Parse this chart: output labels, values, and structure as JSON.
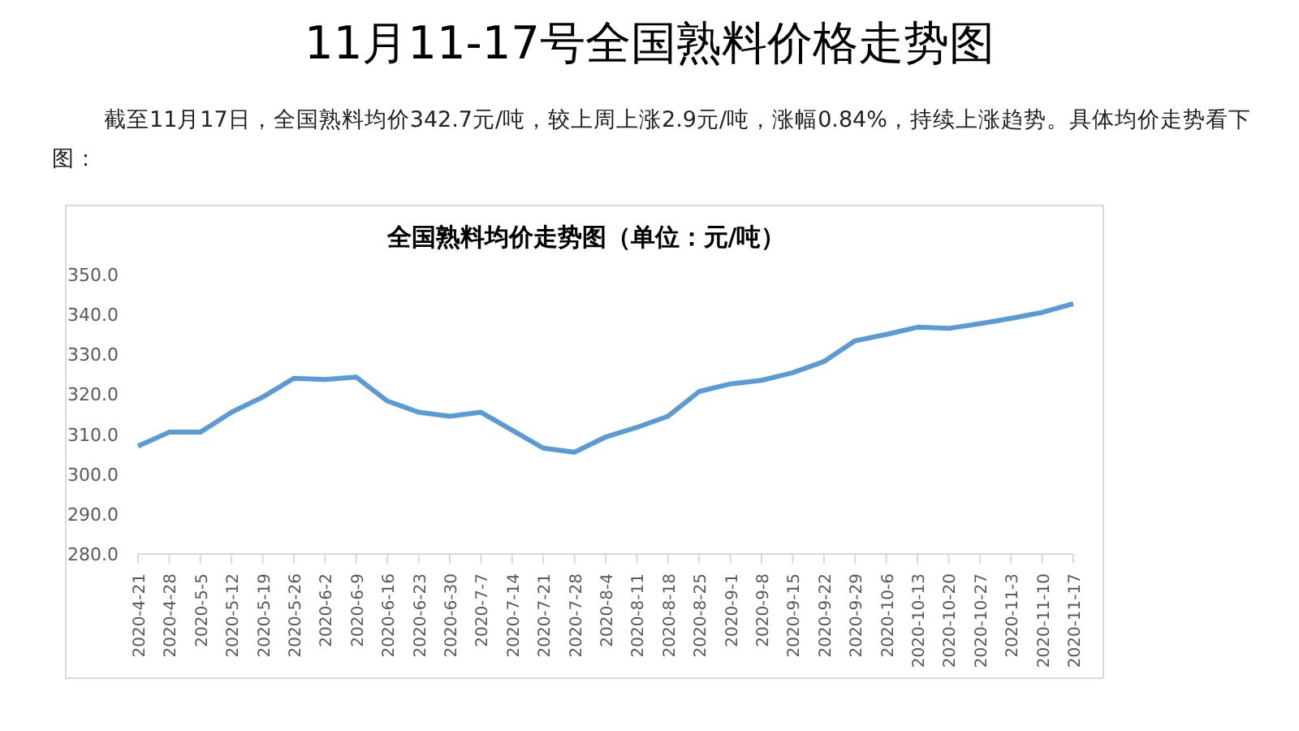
{
  "chart_data": {
    "type": "line",
    "title": "11月11-17号全国熟料价格走势图",
    "subtitle": "截至11月17日，全国熟料均价342.7元/吨，较上周上涨2.9元/吨，涨幅0.84%，持续上涨趋势。具体均价走势看下图：",
    "annotations": [
      "全国熟料均价走势图（单位：元/吨）"
    ],
    "categories": [
      "2020-4-21",
      "2020-4-28",
      "2020-5-5",
      "2020-5-12",
      "2020-5-19",
      "2020-5-26",
      "2020-6-2",
      "2020-6-9",
      "2020-6-16",
      "2020-6-23",
      "2020-6-30",
      "2020-7-7",
      "2020-7-14",
      "2020-7-21",
      "2020-7-28",
      "2020-8-4",
      "2020-8-11",
      "2020-8-18",
      "2020-8-25",
      "2020-9-1",
      "2020-9-8",
      "2020-9-15",
      "2020-9-22",
      "2020-9-29",
      "2020-10-6",
      "2020-10-13",
      "2020-10-20",
      "2020-10-27",
      "2020-11-3",
      "2020-11-10",
      "2020-11-17"
    ],
    "series": [
      {
        "color": "#5b9bd5",
        "values": [
          307,
          310.5,
          310.5,
          315.5,
          319.3,
          324,
          323.7,
          324.3,
          318.3,
          315.5,
          314.5,
          315.5,
          311,
          306.5,
          305.5,
          309.3,
          311.7,
          314.5,
          320.7,
          322.6,
          323.5,
          325.4,
          328.2,
          333.4,
          335,
          336.8,
          336.5,
          337.7,
          339,
          340.5,
          342.7
        ]
      }
    ],
    "ylim": [
      280,
      350
    ],
    "yticks": [
      {
        "value": 280,
        "label": "280.0"
      },
      {
        "value": 290,
        "label": "290.0"
      },
      {
        "value": 300,
        "label": "300.0"
      },
      {
        "value": 310,
        "label": "310.0"
      },
      {
        "value": 320,
        "label": "320.0"
      },
      {
        "value": 330,
        "label": "330.0"
      },
      {
        "value": 340,
        "label": "340.0"
      },
      {
        "value": 350,
        "label": "350.0"
      }
    ],
    "marker": "none",
    "line_style": "solid",
    "legend": false
  }
}
